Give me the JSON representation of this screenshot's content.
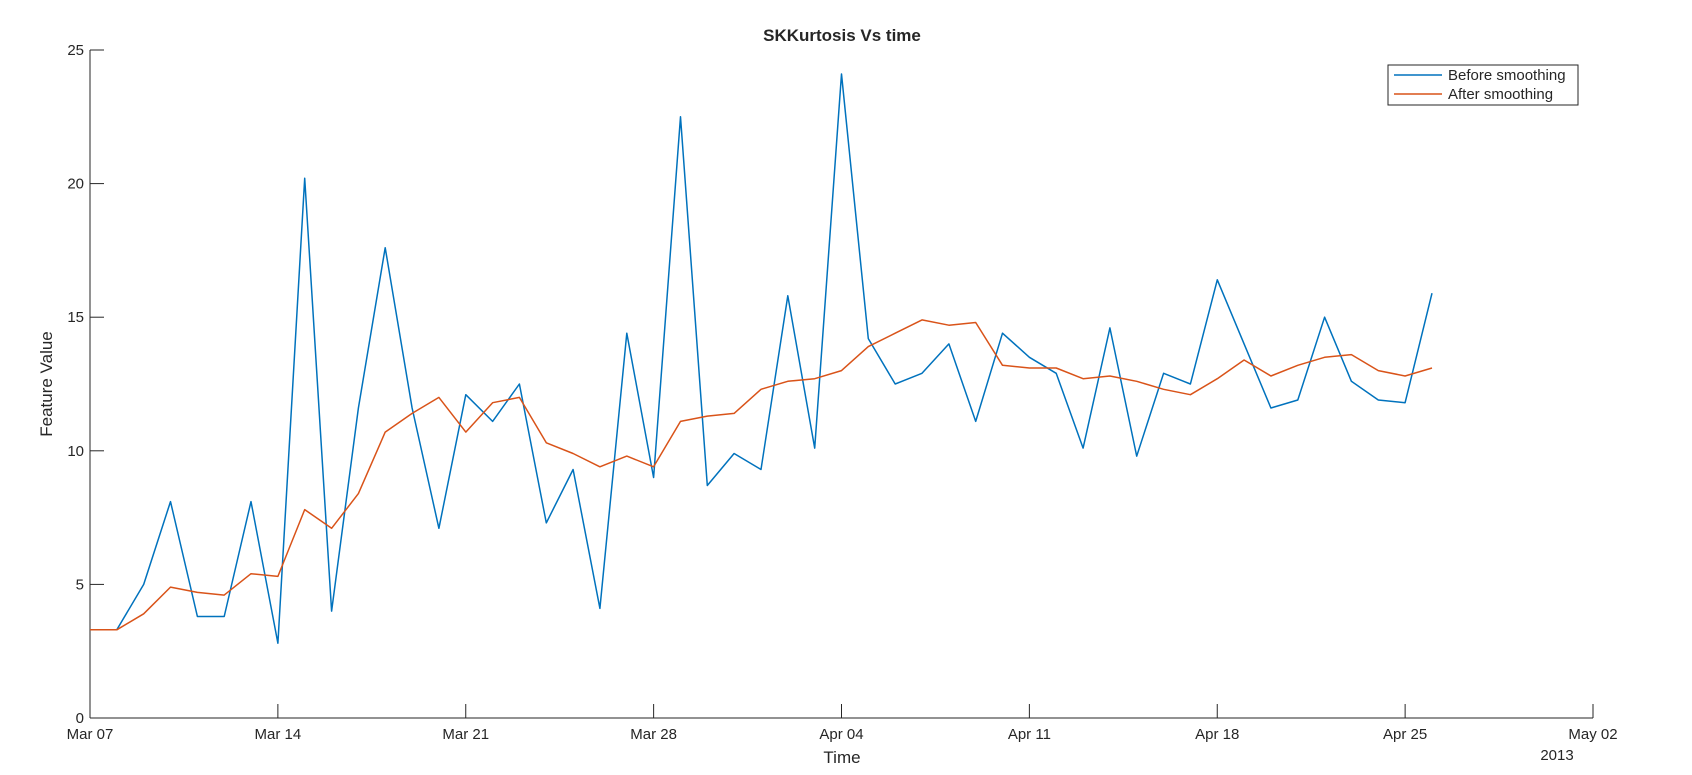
{
  "chart_data": {
    "type": "line",
    "title": "SKKurtosis Vs time",
    "xlabel": "Time",
    "ylabel": "Feature Value",
    "xlim": [
      "2013-03-07",
      "2013-05-02"
    ],
    "ylim": [
      0,
      25
    ],
    "x_ticks": [
      {
        "date": "2013-03-07",
        "label": "Mar 07"
      },
      {
        "date": "2013-03-14",
        "label": "Mar 14"
      },
      {
        "date": "2013-03-21",
        "label": "Mar 21"
      },
      {
        "date": "2013-03-28",
        "label": "Mar 28"
      },
      {
        "date": "2013-04-04",
        "label": "Apr 04"
      },
      {
        "date": "2013-04-11",
        "label": "Apr 11"
      },
      {
        "date": "2013-04-18",
        "label": "Apr 18"
      },
      {
        "date": "2013-04-25",
        "label": "Apr 25"
      },
      {
        "date": "2013-05-02",
        "label": "May 02"
      }
    ],
    "x_secondary_label": "2013",
    "y_ticks": [
      0,
      5,
      10,
      15,
      20,
      25
    ],
    "grid": false,
    "legend_position": "top-right",
    "x": [
      "2013-03-07",
      "2013-03-08",
      "2013-03-09",
      "2013-03-10",
      "2013-03-11",
      "2013-03-12",
      "2013-03-13",
      "2013-03-14",
      "2013-03-15",
      "2013-03-16",
      "2013-03-17",
      "2013-03-18",
      "2013-03-19",
      "2013-03-20",
      "2013-03-21",
      "2013-03-22",
      "2013-03-23",
      "2013-03-24",
      "2013-03-25",
      "2013-03-26",
      "2013-03-27",
      "2013-03-28",
      "2013-03-29",
      "2013-03-30",
      "2013-03-31",
      "2013-04-01",
      "2013-04-02",
      "2013-04-03",
      "2013-04-04",
      "2013-04-05",
      "2013-04-06",
      "2013-04-07",
      "2013-04-08",
      "2013-04-09",
      "2013-04-10",
      "2013-04-11",
      "2013-04-12",
      "2013-04-13",
      "2013-04-14",
      "2013-04-15",
      "2013-04-16",
      "2013-04-17",
      "2013-04-18",
      "2013-04-19",
      "2013-04-20",
      "2013-04-21",
      "2013-04-22",
      "2013-04-23",
      "2013-04-24",
      "2013-04-25",
      "2013-04-26"
    ],
    "series": [
      {
        "name": "Before smoothing",
        "color": "#0072BD",
        "values": [
          3.3,
          3.3,
          5.0,
          8.1,
          3.8,
          3.8,
          8.1,
          2.8,
          20.2,
          4.0,
          11.6,
          17.6,
          11.6,
          7.1,
          12.1,
          11.1,
          12.5,
          7.3,
          9.3,
          4.1,
          14.4,
          9.0,
          22.5,
          8.7,
          9.9,
          9.3,
          15.8,
          10.1,
          24.1,
          14.2,
          12.5,
          12.9,
          14.0,
          11.1,
          14.4,
          13.5,
          12.9,
          10.1,
          14.6,
          9.8,
          12.9,
          12.5,
          16.4,
          14.0,
          11.6,
          11.9,
          15.0,
          12.6,
          11.9,
          11.8,
          15.9
        ]
      },
      {
        "name": "After smoothing",
        "color": "#D95319",
        "values": [
          3.3,
          3.3,
          3.9,
          4.9,
          4.7,
          4.6,
          5.4,
          5.3,
          7.8,
          7.1,
          8.4,
          10.7,
          11.4,
          12.0,
          10.7,
          11.8,
          12.0,
          10.3,
          9.9,
          9.4,
          9.8,
          9.4,
          11.1,
          11.3,
          11.4,
          12.3,
          12.6,
          12.7,
          13.0,
          13.9,
          14.4,
          14.9,
          14.7,
          14.8,
          13.2,
          13.1,
          13.1,
          12.7,
          12.8,
          12.6,
          12.3,
          12.1,
          12.7,
          13.4,
          12.8,
          13.2,
          13.5,
          13.6,
          13.0,
          12.8,
          13.1
        ]
      }
    ]
  }
}
